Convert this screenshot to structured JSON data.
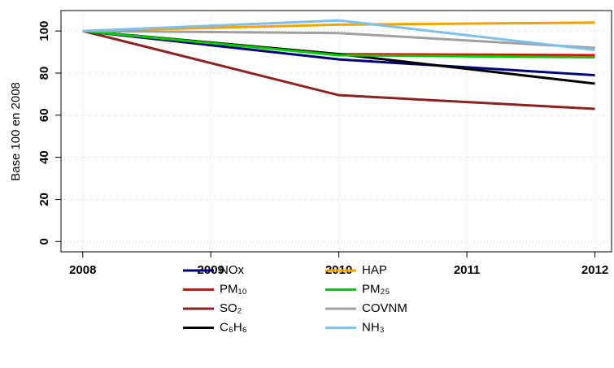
{
  "chart_data": {
    "type": "line",
    "y_label": "Base 100 en 2008",
    "x": [
      2008,
      2010,
      2012
    ],
    "series": [
      {
        "name": "NOx",
        "color": "#00007f",
        "values": [
          100,
          86.5,
          79
        ]
      },
      {
        "name": "PM₁₀",
        "color": "#ee0000",
        "values": [
          100,
          89,
          88.5
        ]
      },
      {
        "name": "SO₂",
        "color": "#8b2323",
        "values": [
          100,
          69.5,
          63
        ]
      },
      {
        "name": "C₆H₆",
        "color": "#000000",
        "values": [
          100,
          89,
          75
        ]
      },
      {
        "name": "HAP",
        "color": "#f5a300",
        "values": [
          100,
          103,
          104
        ]
      },
      {
        "name": "PM₂₅",
        "color": "#00cd00",
        "values": [
          100,
          88.5,
          87.5
        ]
      },
      {
        "name": "COVNM",
        "color": "#a0a0a0",
        "values": [
          100,
          99,
          92
        ]
      },
      {
        "name": "NH₃",
        "color": "#7fbfe8",
        "values": [
          100,
          105,
          91
        ]
      }
    ],
    "xlim": [
      2007.83,
      2012.13
    ],
    "xticks": [
      2008,
      2009,
      2010,
      2011,
      2012
    ],
    "ylim": [
      -4.9,
      109.7
    ],
    "yticks": [
      0,
      20,
      40,
      60,
      80,
      100
    ],
    "grid": true,
    "legend": "bottom"
  }
}
